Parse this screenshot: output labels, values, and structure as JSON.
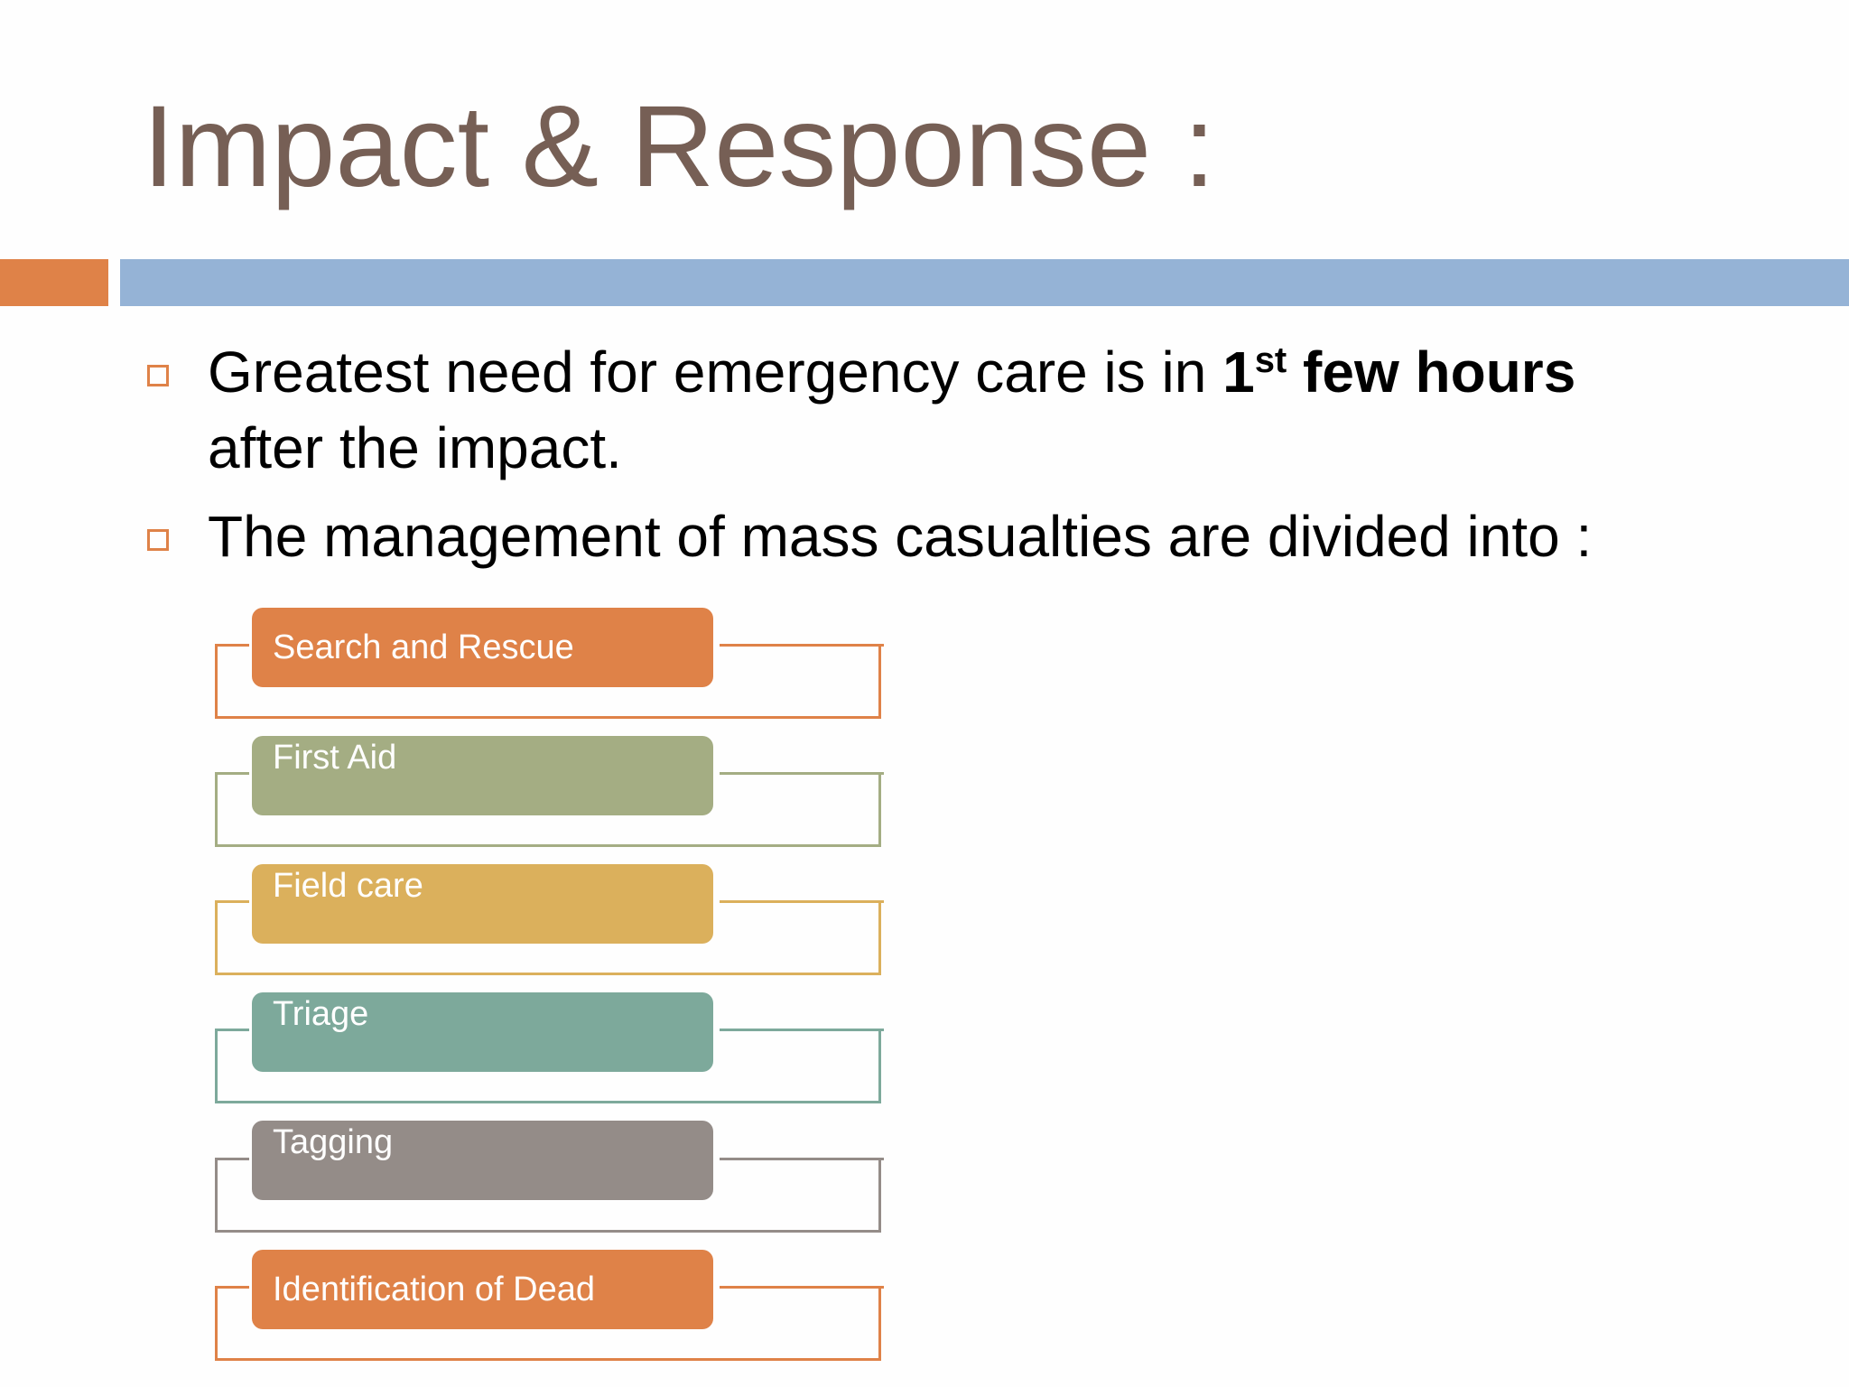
{
  "slide": {
    "title": "Impact & Response :",
    "colors": {
      "title": "#765f55",
      "accent_bar": "#df8248",
      "main_bar": "#95b3d6",
      "bullet_box": "#df8248"
    }
  },
  "bullets": [
    {
      "line1_prefix": "Greatest need for emergency care is in ",
      "emphasis_number": "1",
      "emphasis_suffix": "st",
      "emphasis_text": "few hours",
      "line2": "after the impact."
    },
    {
      "text": "The management of mass casualties are divided into :"
    }
  ],
  "steps": [
    {
      "label": "Search and Rescue",
      "color": "#df8248"
    },
    {
      "label": "First Aid",
      "color": "#a4ad83"
    },
    {
      "label": "Field care",
      "color": "#dbb05c"
    },
    {
      "label": "Triage",
      "color": "#7da99b"
    },
    {
      "label": "Tagging",
      "color": "#948c88"
    },
    {
      "label": "Identification of Dead",
      "color": "#df8248"
    }
  ]
}
